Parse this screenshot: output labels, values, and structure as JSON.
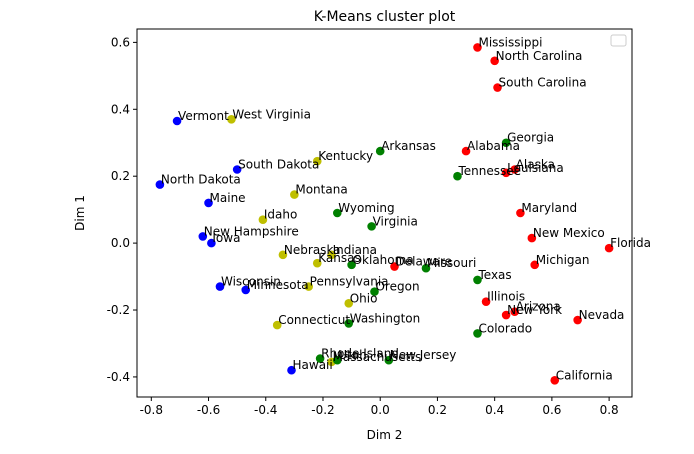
{
  "chart_data": {
    "type": "scatter",
    "title": "K-Means cluster plot",
    "xlabel": "Dim 2",
    "ylabel": "Dim 1",
    "xlim": [
      -0.85,
      0.88
    ],
    "ylim": [
      -0.46,
      0.64
    ],
    "xticks": [
      -0.8,
      -0.6,
      -0.4,
      -0.2,
      0.0,
      0.2,
      0.4,
      0.6,
      0.8
    ],
    "yticks": [
      -0.4,
      -0.2,
      0.0,
      0.2,
      0.4,
      0.6
    ],
    "grid": false,
    "legend": {
      "placement": "top-right",
      "entries": []
    },
    "cluster_colors": [
      "#ff0000",
      "#008000",
      "#0000ff",
      "#bfbf00"
    ],
    "points": [
      {
        "label": "Mississippi",
        "x": 0.34,
        "y": 0.585,
        "cluster": 0
      },
      {
        "label": "North Carolina",
        "x": 0.4,
        "y": 0.545,
        "cluster": 0
      },
      {
        "label": "South Carolina",
        "x": 0.41,
        "y": 0.465,
        "cluster": 0
      },
      {
        "label": "Georgia",
        "x": 0.44,
        "y": 0.3,
        "cluster": 1
      },
      {
        "label": "Alabama",
        "x": 0.3,
        "y": 0.275,
        "cluster": 0
      },
      {
        "label": "Alaska",
        "x": 0.47,
        "y": 0.22,
        "cluster": 0
      },
      {
        "label": "Louisiana",
        "x": 0.44,
        "y": 0.21,
        "cluster": 0
      },
      {
        "label": "Tennessee",
        "x": 0.27,
        "y": 0.2,
        "cluster": 1
      },
      {
        "label": "Arkansas",
        "x": 0.0,
        "y": 0.275,
        "cluster": 1
      },
      {
        "label": "Kentucky",
        "x": -0.22,
        "y": 0.245,
        "cluster": 3
      },
      {
        "label": "Vermont",
        "x": -0.71,
        "y": 0.365,
        "cluster": 2
      },
      {
        "label": "West Virginia",
        "x": -0.52,
        "y": 0.37,
        "cluster": 3
      },
      {
        "label": "South Dakota",
        "x": -0.5,
        "y": 0.22,
        "cluster": 2
      },
      {
        "label": "North Dakota",
        "x": -0.77,
        "y": 0.175,
        "cluster": 2
      },
      {
        "label": "Montana",
        "x": -0.3,
        "y": 0.145,
        "cluster": 3
      },
      {
        "label": "Maine",
        "x": -0.6,
        "y": 0.12,
        "cluster": 2
      },
      {
        "label": "Wyoming",
        "x": -0.15,
        "y": 0.09,
        "cluster": 1
      },
      {
        "label": "Idaho",
        "x": -0.41,
        "y": 0.07,
        "cluster": 3
      },
      {
        "label": "Virginia",
        "x": -0.03,
        "y": 0.05,
        "cluster": 1
      },
      {
        "label": "Maryland",
        "x": 0.49,
        "y": 0.09,
        "cluster": 0
      },
      {
        "label": "New Hampshire",
        "x": -0.62,
        "y": 0.02,
        "cluster": 2
      },
      {
        "label": "Iowa",
        "x": -0.59,
        "y": 0.0,
        "cluster": 2
      },
      {
        "label": "New Mexico",
        "x": 0.53,
        "y": 0.015,
        "cluster": 0
      },
      {
        "label": "Florida",
        "x": 0.8,
        "y": -0.015,
        "cluster": 0
      },
      {
        "label": "Nebraska",
        "x": -0.34,
        "y": -0.035,
        "cluster": 3
      },
      {
        "label": "Indiana",
        "x": -0.17,
        "y": -0.035,
        "cluster": 3
      },
      {
        "label": "Kansas",
        "x": -0.22,
        "y": -0.06,
        "cluster": 3
      },
      {
        "label": "Oklahoma",
        "x": -0.1,
        "y": -0.065,
        "cluster": 1
      },
      {
        "label": "Delaware",
        "x": 0.05,
        "y": -0.07,
        "cluster": 0
      },
      {
        "label": "Missouri",
        "x": 0.16,
        "y": -0.075,
        "cluster": 1
      },
      {
        "label": "Michigan",
        "x": 0.54,
        "y": -0.065,
        "cluster": 0
      },
      {
        "label": "Texas",
        "x": 0.34,
        "y": -0.11,
        "cluster": 1
      },
      {
        "label": "Wisconsin",
        "x": -0.56,
        "y": -0.13,
        "cluster": 2
      },
      {
        "label": "Minnesota",
        "x": -0.47,
        "y": -0.14,
        "cluster": 2
      },
      {
        "label": "Pennsylvania",
        "x": -0.25,
        "y": -0.13,
        "cluster": 3
      },
      {
        "label": "Oregon",
        "x": -0.02,
        "y": -0.145,
        "cluster": 1
      },
      {
        "label": "Ohio",
        "x": -0.11,
        "y": -0.18,
        "cluster": 3
      },
      {
        "label": "Illinois",
        "x": 0.37,
        "y": -0.175,
        "cluster": 0
      },
      {
        "label": "Arizona",
        "x": 0.47,
        "y": -0.205,
        "cluster": 0
      },
      {
        "label": "New York",
        "x": 0.44,
        "y": -0.215,
        "cluster": 0
      },
      {
        "label": "Nevada",
        "x": 0.69,
        "y": -0.23,
        "cluster": 0
      },
      {
        "label": "Connecticut",
        "x": -0.36,
        "y": -0.245,
        "cluster": 3
      },
      {
        "label": "Washington",
        "x": -0.11,
        "y": -0.24,
        "cluster": 1
      },
      {
        "label": "Colorado",
        "x": 0.34,
        "y": -0.27,
        "cluster": 1
      },
      {
        "label": "Rhode Island",
        "x": -0.21,
        "y": -0.345,
        "cluster": 1
      },
      {
        "label": "Massachusetts",
        "x": -0.17,
        "y": -0.355,
        "cluster": 3
      },
      {
        "label": "Utah",
        "x": -0.15,
        "y": -0.35,
        "cluster": 1
      },
      {
        "label": "New Jersey",
        "x": 0.03,
        "y": -0.35,
        "cluster": 1
      },
      {
        "label": "Hawaii",
        "x": -0.31,
        "y": -0.38,
        "cluster": 2
      },
      {
        "label": "California",
        "x": 0.61,
        "y": -0.41,
        "cluster": 0
      }
    ]
  }
}
